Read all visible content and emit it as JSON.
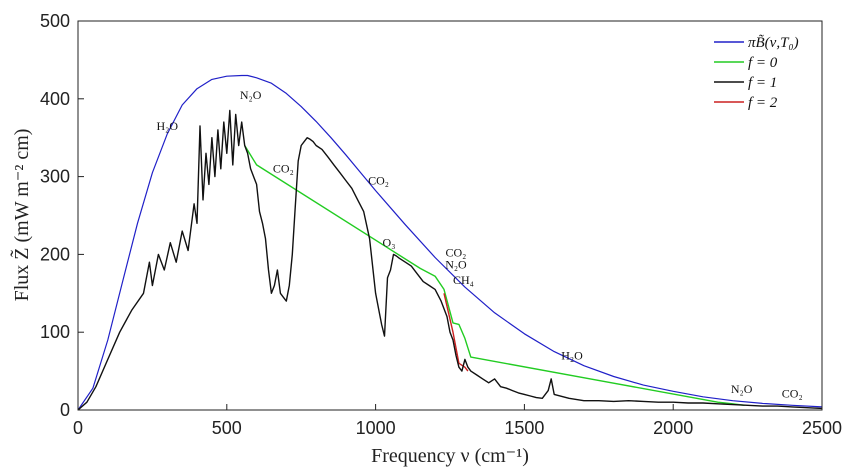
{
  "chart_data": {
    "type": "line",
    "title": "",
    "xlabel": "Frequency ν (cm⁻¹)",
    "ylabel": "Flux Z̃ (mW m⁻² cm)",
    "xlim": [
      0,
      2500
    ],
    "ylim": [
      0,
      500
    ],
    "xticks": [
      0,
      500,
      1000,
      1500,
      2000,
      2500
    ],
    "yticks": [
      0,
      100,
      200,
      300,
      400,
      500
    ],
    "xtick_labels": [
      "0",
      "500",
      "1000",
      "1500",
      "2000",
      "2500"
    ],
    "ytick_labels": [
      "0",
      "100",
      "200",
      "300",
      "400",
      "500"
    ],
    "grid": false,
    "legend_position": "top-right",
    "series": [
      {
        "name": "πB̃(ν,T₀)",
        "color": "#2020c8",
        "x": [
          0,
          50,
          100,
          150,
          200,
          250,
          300,
          350,
          400,
          450,
          500,
          550,
          570,
          600,
          650,
          700,
          750,
          800,
          850,
          900,
          950,
          1000,
          1100,
          1200,
          1300,
          1400,
          1500,
          1600,
          1700,
          1800,
          1900,
          2000,
          2100,
          2200,
          2300,
          2400,
          2500
        ],
        "y": [
          0,
          28,
          90,
          165,
          240,
          305,
          355,
          392,
          413,
          425,
          429,
          430,
          430,
          427,
          420,
          407,
          390,
          371,
          350,
          328,
          305,
          282,
          238,
          196,
          158,
          125,
          98,
          75,
          57,
          43,
          32,
          24,
          17,
          12,
          8.5,
          6,
          4
        ]
      },
      {
        "name": "f = 0",
        "color": "#22cc22",
        "x": [
          560,
          600,
          1150,
          1200,
          1230,
          1260,
          1280,
          1300,
          1320,
          2150,
          2200,
          2240
        ],
        "y": [
          340,
          315,
          182,
          172,
          155,
          112,
          110,
          92,
          68,
          10,
          8,
          6
        ]
      },
      {
        "name": "f = 1",
        "color": "#111111",
        "x": [
          0,
          30,
          60,
          100,
          140,
          180,
          220,
          240,
          250,
          270,
          290,
          310,
          330,
          350,
          370,
          390,
          400,
          410,
          420,
          430,
          440,
          450,
          460,
          470,
          480,
          490,
          500,
          510,
          520,
          530,
          540,
          550,
          560,
          570,
          580,
          590,
          600,
          610,
          620,
          630,
          640,
          650,
          660,
          670,
          680,
          690,
          700,
          710,
          720,
          730,
          740,
          750,
          760,
          770,
          780,
          790,
          800,
          820,
          840,
          860,
          880,
          900,
          920,
          940,
          960,
          980,
          1000,
          1010,
          1020,
          1030,
          1040,
          1050,
          1060,
          1070,
          1080,
          1100,
          1120,
          1140,
          1160,
          1180,
          1200,
          1220,
          1240,
          1250,
          1260,
          1270,
          1280,
          1290,
          1300,
          1310,
          1320,
          1340,
          1360,
          1380,
          1400,
          1420,
          1440,
          1460,
          1480,
          1500,
          1520,
          1540,
          1560,
          1580,
          1590,
          1600,
          1650,
          1700,
          1750,
          1800,
          1850,
          1900,
          1950,
          2000,
          2050,
          2100,
          2150,
          2200,
          2250,
          2300,
          2350,
          2400,
          2450,
          2500
        ],
        "y": [
          0,
          10,
          30,
          65,
          100,
          128,
          150,
          190,
          160,
          200,
          180,
          215,
          190,
          230,
          205,
          265,
          240,
          365,
          270,
          330,
          290,
          350,
          300,
          360,
          310,
          370,
          330,
          385,
          315,
          380,
          340,
          370,
          340,
          330,
          310,
          300,
          290,
          255,
          240,
          220,
          180,
          150,
          160,
          180,
          150,
          145,
          140,
          160,
          200,
          260,
          320,
          340,
          345,
          350,
          348,
          345,
          340,
          335,
          325,
          315,
          305,
          295,
          285,
          270,
          255,
          220,
          150,
          130,
          110,
          95,
          170,
          180,
          200,
          198,
          195,
          190,
          185,
          175,
          165,
          160,
          155,
          140,
          120,
          100,
          90,
          70,
          55,
          50,
          65,
          55,
          50,
          45,
          40,
          35,
          40,
          30,
          28,
          25,
          22,
          20,
          18,
          16,
          15,
          25,
          40,
          20,
          15,
          12,
          12,
          11,
          12,
          11,
          10,
          10,
          9,
          9,
          8,
          7,
          6,
          5,
          5,
          4,
          3,
          2
        ]
      },
      {
        "name": "f = 2",
        "color": "#cc2020",
        "x": [
          1230,
          1260,
          1280,
          1300,
          1310
        ],
        "y": [
          150,
          100,
          60,
          55,
          50
        ]
      }
    ],
    "annotations": [
      {
        "text": "H₂O",
        "x": 300,
        "y": 360
      },
      {
        "text": "N₂O",
        "x": 580,
        "y": 400
      },
      {
        "text": "CO₂",
        "x": 690,
        "y": 305
      },
      {
        "text": "CO₂",
        "x": 1010,
        "y": 290
      },
      {
        "text": "O₃",
        "x": 1045,
        "y": 210
      },
      {
        "text": "CO₂",
        "x": 1270,
        "y": 197
      },
      {
        "text": "N₂O",
        "x": 1270,
        "y": 182
      },
      {
        "text": "CH₄",
        "x": 1295,
        "y": 162
      },
      {
        "text": "H₂O",
        "x": 1660,
        "y": 65
      },
      {
        "text": "N₂O",
        "x": 2230,
        "y": 22
      },
      {
        "text": "CO₂",
        "x": 2400,
        "y": 16
      }
    ]
  }
}
